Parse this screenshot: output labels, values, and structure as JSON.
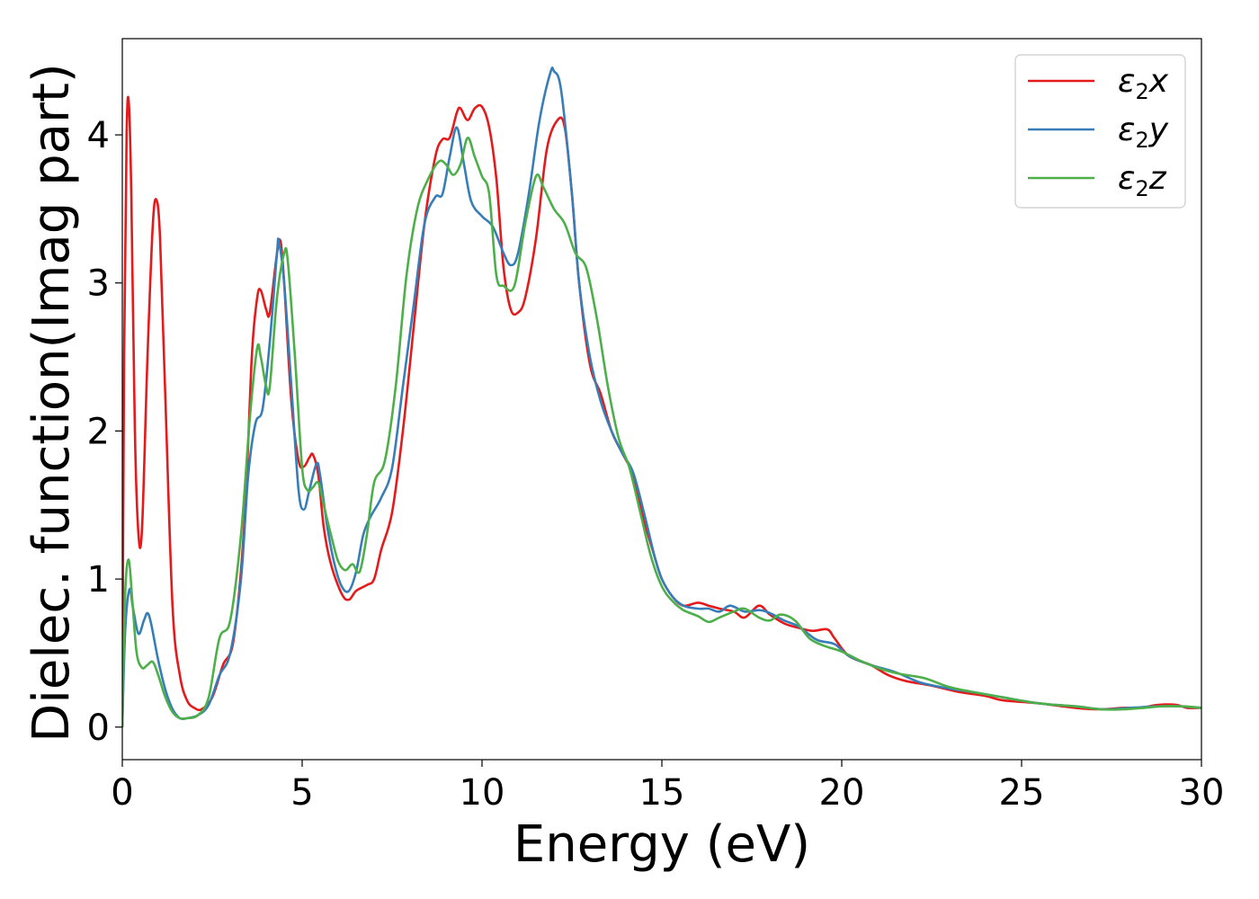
{
  "chart_data": {
    "type": "line",
    "title": "",
    "xlabel": "Energy (eV)",
    "ylabel": "Dielec. function(Imag part)",
    "xlim": [
      0,
      30
    ],
    "ylim": [
      -0.22,
      4.65
    ],
    "xticks": [
      0,
      5,
      10,
      15,
      20,
      25,
      30
    ],
    "yticks": [
      0,
      1,
      2,
      3,
      4
    ],
    "grid": false,
    "legend_position": "top-right",
    "legend": [
      {
        "base": "ε",
        "sub": "2",
        "var": "x"
      },
      {
        "base": "ε",
        "sub": "2",
        "var": "y"
      },
      {
        "base": "ε",
        "sub": "2",
        "var": "z"
      }
    ],
    "series": [
      {
        "color": "#e41a1c",
        "points": [
          [
            0,
            0.0
          ],
          [
            0.05,
            2.5
          ],
          [
            0.12,
            4.0
          ],
          [
            0.18,
            4.22
          ],
          [
            0.25,
            3.6
          ],
          [
            0.35,
            2.0
          ],
          [
            0.45,
            1.3
          ],
          [
            0.55,
            1.35
          ],
          [
            0.7,
            2.5
          ],
          [
            0.85,
            3.4
          ],
          [
            0.95,
            3.56
          ],
          [
            1.05,
            3.3
          ],
          [
            1.2,
            2.2
          ],
          [
            1.4,
            0.8
          ],
          [
            1.6,
            0.35
          ],
          [
            1.8,
            0.18
          ],
          [
            2.0,
            0.13
          ],
          [
            2.2,
            0.12
          ],
          [
            2.5,
            0.2
          ],
          [
            2.8,
            0.42
          ],
          [
            3.1,
            0.6
          ],
          [
            3.4,
            1.4
          ],
          [
            3.6,
            2.5
          ],
          [
            3.75,
            2.9
          ],
          [
            3.85,
            2.95
          ],
          [
            4.0,
            2.82
          ],
          [
            4.1,
            2.8
          ],
          [
            4.3,
            3.2
          ],
          [
            4.4,
            3.28
          ],
          [
            4.5,
            3.0
          ],
          [
            4.7,
            2.2
          ],
          [
            4.9,
            1.8
          ],
          [
            5.05,
            1.76
          ],
          [
            5.2,
            1.82
          ],
          [
            5.3,
            1.84
          ],
          [
            5.45,
            1.7
          ],
          [
            5.6,
            1.35
          ],
          [
            5.8,
            1.1
          ],
          [
            6.1,
            0.9
          ],
          [
            6.3,
            0.86
          ],
          [
            6.5,
            0.92
          ],
          [
            6.8,
            0.96
          ],
          [
            7.0,
            1.0
          ],
          [
            7.2,
            1.2
          ],
          [
            7.5,
            1.45
          ],
          [
            7.8,
            2.0
          ],
          [
            8.1,
            2.7
          ],
          [
            8.4,
            3.4
          ],
          [
            8.7,
            3.85
          ],
          [
            8.9,
            3.97
          ],
          [
            9.1,
            3.98
          ],
          [
            9.3,
            4.15
          ],
          [
            9.4,
            4.18
          ],
          [
            9.6,
            4.1
          ],
          [
            9.8,
            4.18
          ],
          [
            10.0,
            4.19
          ],
          [
            10.2,
            4.05
          ],
          [
            10.4,
            3.7
          ],
          [
            10.6,
            3.1
          ],
          [
            10.8,
            2.82
          ],
          [
            11.0,
            2.8
          ],
          [
            11.2,
            2.9
          ],
          [
            11.5,
            3.3
          ],
          [
            11.8,
            3.9
          ],
          [
            12.1,
            4.1
          ],
          [
            12.3,
            4.05
          ],
          [
            12.5,
            3.6
          ],
          [
            12.7,
            3.0
          ],
          [
            13.0,
            2.45
          ],
          [
            13.3,
            2.25
          ],
          [
            13.6,
            2.0
          ],
          [
            13.9,
            1.85
          ],
          [
            14.2,
            1.7
          ],
          [
            14.5,
            1.4
          ],
          [
            14.8,
            1.15
          ],
          [
            15.0,
            1.0
          ],
          [
            15.3,
            0.88
          ],
          [
            15.6,
            0.82
          ],
          [
            16.0,
            0.84
          ],
          [
            16.3,
            0.82
          ],
          [
            16.6,
            0.8
          ],
          [
            17.0,
            0.78
          ],
          [
            17.3,
            0.74
          ],
          [
            17.7,
            0.82
          ],
          [
            18.0,
            0.76
          ],
          [
            18.4,
            0.7
          ],
          [
            18.8,
            0.67
          ],
          [
            19.2,
            0.65
          ],
          [
            19.6,
            0.66
          ],
          [
            19.8,
            0.6
          ],
          [
            20.2,
            0.48
          ],
          [
            20.8,
            0.42
          ],
          [
            21.3,
            0.35
          ],
          [
            21.8,
            0.31
          ],
          [
            22.5,
            0.28
          ],
          [
            23.2,
            0.24
          ],
          [
            24.0,
            0.21
          ],
          [
            24.5,
            0.18
          ],
          [
            25.5,
            0.16
          ],
          [
            26.5,
            0.13
          ],
          [
            27.2,
            0.12
          ],
          [
            27.8,
            0.13
          ],
          [
            28.3,
            0.13
          ],
          [
            28.8,
            0.15
          ],
          [
            29.3,
            0.15
          ],
          [
            29.6,
            0.13
          ],
          [
            30.0,
            0.13
          ]
        ]
      },
      {
        "color": "#377eb8",
        "points": [
          [
            0,
            0.0
          ],
          [
            0.08,
            0.65
          ],
          [
            0.2,
            0.93
          ],
          [
            0.3,
            0.8
          ],
          [
            0.45,
            0.63
          ],
          [
            0.6,
            0.72
          ],
          [
            0.7,
            0.77
          ],
          [
            0.8,
            0.7
          ],
          [
            1.0,
            0.45
          ],
          [
            1.2,
            0.25
          ],
          [
            1.4,
            0.12
          ],
          [
            1.6,
            0.06
          ],
          [
            1.8,
            0.06
          ],
          [
            2.1,
            0.08
          ],
          [
            2.4,
            0.15
          ],
          [
            2.7,
            0.35
          ],
          [
            3.0,
            0.5
          ],
          [
            3.3,
            1.0
          ],
          [
            3.5,
            1.7
          ],
          [
            3.7,
            2.05
          ],
          [
            3.9,
            2.15
          ],
          [
            4.1,
            2.6
          ],
          [
            4.3,
            3.2
          ],
          [
            4.35,
            3.28
          ],
          [
            4.5,
            3.0
          ],
          [
            4.7,
            2.3
          ],
          [
            4.9,
            1.6
          ],
          [
            5.05,
            1.47
          ],
          [
            5.2,
            1.6
          ],
          [
            5.4,
            1.78
          ],
          [
            5.5,
            1.7
          ],
          [
            5.7,
            1.35
          ],
          [
            5.9,
            1.1
          ],
          [
            6.1,
            0.95
          ],
          [
            6.3,
            0.92
          ],
          [
            6.5,
            1.05
          ],
          [
            6.7,
            1.3
          ],
          [
            6.9,
            1.42
          ],
          [
            7.2,
            1.55
          ],
          [
            7.5,
            1.75
          ],
          [
            7.8,
            2.3
          ],
          [
            8.1,
            2.85
          ],
          [
            8.4,
            3.4
          ],
          [
            8.7,
            3.58
          ],
          [
            8.9,
            3.6
          ],
          [
            9.1,
            3.85
          ],
          [
            9.3,
            4.05
          ],
          [
            9.5,
            3.8
          ],
          [
            9.7,
            3.55
          ],
          [
            10.0,
            3.45
          ],
          [
            10.3,
            3.38
          ],
          [
            10.6,
            3.2
          ],
          [
            10.8,
            3.12
          ],
          [
            11.0,
            3.2
          ],
          [
            11.3,
            3.6
          ],
          [
            11.6,
            4.1
          ],
          [
            11.9,
            4.42
          ],
          [
            12.0,
            4.43
          ],
          [
            12.2,
            4.3
          ],
          [
            12.5,
            3.6
          ],
          [
            12.7,
            3.0
          ],
          [
            13.0,
            2.5
          ],
          [
            13.3,
            2.2
          ],
          [
            13.6,
            2.0
          ],
          [
            13.9,
            1.85
          ],
          [
            14.2,
            1.72
          ],
          [
            14.5,
            1.45
          ],
          [
            14.8,
            1.15
          ],
          [
            15.0,
            1.0
          ],
          [
            15.3,
            0.88
          ],
          [
            15.6,
            0.82
          ],
          [
            16.0,
            0.8
          ],
          [
            16.3,
            0.8
          ],
          [
            16.6,
            0.78
          ],
          [
            16.9,
            0.82
          ],
          [
            17.3,
            0.78
          ],
          [
            17.7,
            0.79
          ],
          [
            18.0,
            0.77
          ],
          [
            18.4,
            0.72
          ],
          [
            18.8,
            0.68
          ],
          [
            19.3,
            0.59
          ],
          [
            19.8,
            0.56
          ],
          [
            20.2,
            0.48
          ],
          [
            20.8,
            0.42
          ],
          [
            21.5,
            0.37
          ],
          [
            22.2,
            0.3
          ],
          [
            23.0,
            0.26
          ],
          [
            23.8,
            0.23
          ],
          [
            24.5,
            0.2
          ],
          [
            25.5,
            0.16
          ],
          [
            26.5,
            0.14
          ],
          [
            27.3,
            0.12
          ],
          [
            28.0,
            0.13
          ],
          [
            28.8,
            0.14
          ],
          [
            29.4,
            0.14
          ],
          [
            30.0,
            0.13
          ]
        ]
      },
      {
        "color": "#4daf4a",
        "points": [
          [
            0,
            0.0
          ],
          [
            0.08,
            0.9
          ],
          [
            0.18,
            1.13
          ],
          [
            0.28,
            0.85
          ],
          [
            0.4,
            0.5
          ],
          [
            0.55,
            0.4
          ],
          [
            0.7,
            0.42
          ],
          [
            0.85,
            0.44
          ],
          [
            1.0,
            0.35
          ],
          [
            1.2,
            0.2
          ],
          [
            1.4,
            0.1
          ],
          [
            1.6,
            0.06
          ],
          [
            1.8,
            0.06
          ],
          [
            2.1,
            0.08
          ],
          [
            2.4,
            0.2
          ],
          [
            2.7,
            0.6
          ],
          [
            3.0,
            0.72
          ],
          [
            3.3,
            1.3
          ],
          [
            3.55,
            2.1
          ],
          [
            3.75,
            2.56
          ],
          [
            3.85,
            2.5
          ],
          [
            4.0,
            2.3
          ],
          [
            4.1,
            2.3
          ],
          [
            4.3,
            2.9
          ],
          [
            4.5,
            3.2
          ],
          [
            4.6,
            3.15
          ],
          [
            4.8,
            2.5
          ],
          [
            5.0,
            1.75
          ],
          [
            5.15,
            1.6
          ],
          [
            5.3,
            1.62
          ],
          [
            5.45,
            1.65
          ],
          [
            5.6,
            1.5
          ],
          [
            5.8,
            1.3
          ],
          [
            6.0,
            1.12
          ],
          [
            6.2,
            1.06
          ],
          [
            6.4,
            1.1
          ],
          [
            6.6,
            1.05
          ],
          [
            6.8,
            1.3
          ],
          [
            7.0,
            1.65
          ],
          [
            7.3,
            1.8
          ],
          [
            7.6,
            2.3
          ],
          [
            7.9,
            3.05
          ],
          [
            8.2,
            3.5
          ],
          [
            8.5,
            3.7
          ],
          [
            8.8,
            3.82
          ],
          [
            9.0,
            3.8
          ],
          [
            9.2,
            3.73
          ],
          [
            9.4,
            3.8
          ],
          [
            9.6,
            3.98
          ],
          [
            9.8,
            3.85
          ],
          [
            10.0,
            3.72
          ],
          [
            10.2,
            3.6
          ],
          [
            10.4,
            3.05
          ],
          [
            10.6,
            2.98
          ],
          [
            10.9,
            2.98
          ],
          [
            11.2,
            3.4
          ],
          [
            11.5,
            3.72
          ],
          [
            11.7,
            3.65
          ],
          [
            12.0,
            3.5
          ],
          [
            12.3,
            3.4
          ],
          [
            12.6,
            3.2
          ],
          [
            12.9,
            3.1
          ],
          [
            13.2,
            2.75
          ],
          [
            13.5,
            2.3
          ],
          [
            13.8,
            1.95
          ],
          [
            14.1,
            1.75
          ],
          [
            14.4,
            1.45
          ],
          [
            14.7,
            1.15
          ],
          [
            15.0,
            0.95
          ],
          [
            15.3,
            0.85
          ],
          [
            15.6,
            0.79
          ],
          [
            16.0,
            0.75
          ],
          [
            16.3,
            0.71
          ],
          [
            16.6,
            0.74
          ],
          [
            17.0,
            0.78
          ],
          [
            17.3,
            0.8
          ],
          [
            17.7,
            0.74
          ],
          [
            18.0,
            0.72
          ],
          [
            18.3,
            0.76
          ],
          [
            18.7,
            0.72
          ],
          [
            19.1,
            0.6
          ],
          [
            19.5,
            0.55
          ],
          [
            20.0,
            0.51
          ],
          [
            20.5,
            0.45
          ],
          [
            21.0,
            0.4
          ],
          [
            21.6,
            0.36
          ],
          [
            22.3,
            0.33
          ],
          [
            23.0,
            0.27
          ],
          [
            23.8,
            0.23
          ],
          [
            24.5,
            0.2
          ],
          [
            25.5,
            0.16
          ],
          [
            26.5,
            0.14
          ],
          [
            27.2,
            0.12
          ],
          [
            27.8,
            0.12
          ],
          [
            28.4,
            0.13
          ],
          [
            28.9,
            0.14
          ],
          [
            29.5,
            0.14
          ],
          [
            30.0,
            0.13
          ]
        ]
      }
    ]
  }
}
